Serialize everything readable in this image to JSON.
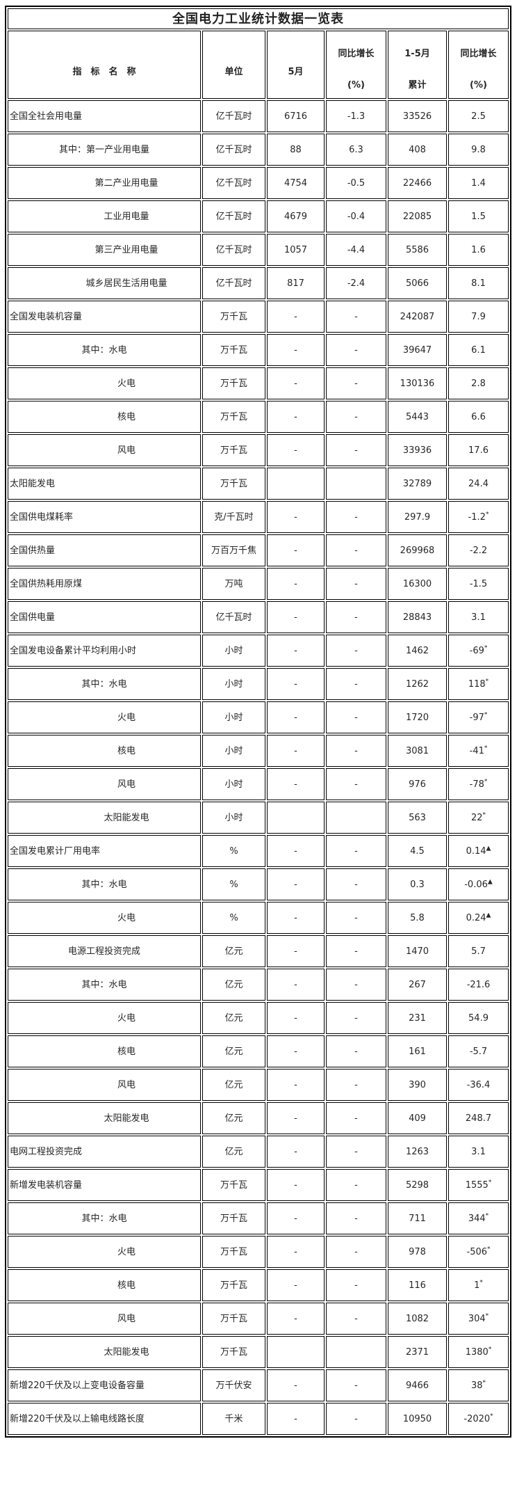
{
  "title": "全国电力工业统计数据一览表",
  "header": {
    "indicator": "指　标　名　称",
    "unit": "单位",
    "may": "5月",
    "yoy": "同比增长",
    "yoy_unit": "(%)",
    "cum": "1-5月",
    "cum_label": "累计"
  },
  "colors": {
    "border": "#000000",
    "text": "#262626",
    "background": "#ffffff"
  },
  "table_rows": [
    {
      "indicator": "全国全社会用电量",
      "align": "left",
      "unit": "亿千瓦时",
      "may": "6716",
      "yoy_may": "-1.3",
      "cum": "33526",
      "yoy_cum": "2.5",
      "marker": ""
    },
    {
      "indicator": "其中：第一产业用电量",
      "align": "center",
      "unit": "亿千瓦时",
      "may": "88",
      "yoy_may": "6.3",
      "cum": "408",
      "yoy_cum": "9.8",
      "marker": ""
    },
    {
      "indicator": "第二产业用电量",
      "align": "indent",
      "unit": "亿千瓦时",
      "may": "4754",
      "yoy_may": "-0.5",
      "cum": "22466",
      "yoy_cum": "1.4",
      "marker": ""
    },
    {
      "indicator": "工业用电量",
      "align": "indent",
      "unit": "亿千瓦时",
      "may": "4679",
      "yoy_may": "-0.4",
      "cum": "22085",
      "yoy_cum": "1.5",
      "marker": ""
    },
    {
      "indicator": "第三产业用电量",
      "align": "indent",
      "unit": "亿千瓦时",
      "may": "1057",
      "yoy_may": "-4.4",
      "cum": "5586",
      "yoy_cum": "1.6",
      "marker": ""
    },
    {
      "indicator": "城乡居民生活用电量",
      "align": "indent",
      "unit": "亿千瓦时",
      "may": "817",
      "yoy_may": "-2.4",
      "cum": "5066",
      "yoy_cum": "8.1",
      "marker": ""
    },
    {
      "indicator": "全国发电装机容量",
      "align": "left",
      "unit": "万千瓦",
      "may": "-",
      "yoy_may": "-",
      "cum": "242087",
      "yoy_cum": "7.9",
      "marker": ""
    },
    {
      "indicator": "其中：水电",
      "align": "center",
      "unit": "万千瓦",
      "may": "-",
      "yoy_may": "-",
      "cum": "39647",
      "yoy_cum": "6.1",
      "marker": ""
    },
    {
      "indicator": "火电",
      "align": "indent",
      "unit": "万千瓦",
      "may": "-",
      "yoy_may": "-",
      "cum": "130136",
      "yoy_cum": "2.8",
      "marker": ""
    },
    {
      "indicator": "核电",
      "align": "indent",
      "unit": "万千瓦",
      "may": "-",
      "yoy_may": "-",
      "cum": "5443",
      "yoy_cum": "6.6",
      "marker": ""
    },
    {
      "indicator": "风电",
      "align": "indent",
      "unit": "万千瓦",
      "may": "-",
      "yoy_may": "-",
      "cum": "33936",
      "yoy_cum": "17.6",
      "marker": ""
    },
    {
      "indicator": "太阳能发电",
      "align": "left",
      "unit": "万千瓦",
      "may": "",
      "yoy_may": "",
      "cum": "32789",
      "yoy_cum": "24.4",
      "marker": ""
    },
    {
      "indicator": "全国供电煤耗率",
      "align": "left",
      "unit": "克/千瓦时",
      "may": "-",
      "yoy_may": "-",
      "cum": "297.9",
      "yoy_cum": "-1.2",
      "marker": "*"
    },
    {
      "indicator": "全国供热量",
      "align": "left",
      "unit": "万百万千焦",
      "may": "-",
      "yoy_may": "-",
      "cum": "269968",
      "yoy_cum": "-2.2",
      "marker": ""
    },
    {
      "indicator": "全国供热耗用原煤",
      "align": "left",
      "unit": "万吨",
      "may": "-",
      "yoy_may": "-",
      "cum": "16300",
      "yoy_cum": "-1.5",
      "marker": ""
    },
    {
      "indicator": "全国供电量",
      "align": "left",
      "unit": "亿千瓦时",
      "may": "-",
      "yoy_may": "-",
      "cum": "28843",
      "yoy_cum": "3.1",
      "marker": ""
    },
    {
      "indicator": "全国发电设备累计平均利用小时",
      "align": "left",
      "unit": "小时",
      "may": "-",
      "yoy_may": "-",
      "cum": "1462",
      "yoy_cum": "-69",
      "marker": "*"
    },
    {
      "indicator": "其中：水电",
      "align": "center",
      "unit": "小时",
      "may": "-",
      "yoy_may": "-",
      "cum": "1262",
      "yoy_cum": "118",
      "marker": "*"
    },
    {
      "indicator": "火电",
      "align": "indent",
      "unit": "小时",
      "may": "-",
      "yoy_may": "-",
      "cum": "1720",
      "yoy_cum": "-97",
      "marker": "*"
    },
    {
      "indicator": "核电",
      "align": "indent",
      "unit": "小时",
      "may": "-",
      "yoy_may": "-",
      "cum": "3081",
      "yoy_cum": "-41",
      "marker": "*"
    },
    {
      "indicator": "风电",
      "align": "indent",
      "unit": "小时",
      "may": "-",
      "yoy_may": "-",
      "cum": "976",
      "yoy_cum": "-78",
      "marker": "*"
    },
    {
      "indicator": "太阳能发电",
      "align": "indent",
      "unit": "小时",
      "may": "",
      "yoy_may": "",
      "cum": "563",
      "yoy_cum": "22",
      "marker": "*"
    },
    {
      "indicator": "全国发电累计厂用电率",
      "align": "left",
      "unit": "%",
      "may": "-",
      "yoy_may": "-",
      "cum": "4.5",
      "yoy_cum": "0.14",
      "marker": "▲"
    },
    {
      "indicator": "其中：水电",
      "align": "center",
      "unit": "%",
      "may": "-",
      "yoy_may": "-",
      "cum": "0.3",
      "yoy_cum": "-0.06",
      "marker": "▲"
    },
    {
      "indicator": "火电",
      "align": "indent",
      "unit": "%",
      "may": "-",
      "yoy_may": "-",
      "cum": "5.8",
      "yoy_cum": "0.24",
      "marker": "▲"
    },
    {
      "indicator": "电源工程投资完成",
      "align": "center",
      "unit": "亿元",
      "may": "-",
      "yoy_may": "-",
      "cum": "1470",
      "yoy_cum": "5.7",
      "marker": ""
    },
    {
      "indicator": "其中：水电",
      "align": "center",
      "unit": "亿元",
      "may": "-",
      "yoy_may": "-",
      "cum": "267",
      "yoy_cum": "-21.6",
      "marker": ""
    },
    {
      "indicator": "火电",
      "align": "indent",
      "unit": "亿元",
      "may": "-",
      "yoy_may": "-",
      "cum": "231",
      "yoy_cum": "54.9",
      "marker": ""
    },
    {
      "indicator": "核电",
      "align": "indent",
      "unit": "亿元",
      "may": "-",
      "yoy_may": "-",
      "cum": "161",
      "yoy_cum": "-5.7",
      "marker": ""
    },
    {
      "indicator": "风电",
      "align": "indent",
      "unit": "亿元",
      "may": "-",
      "yoy_may": "-",
      "cum": "390",
      "yoy_cum": "-36.4",
      "marker": ""
    },
    {
      "indicator": "太阳能发电",
      "align": "indent",
      "unit": "亿元",
      "may": "-",
      "yoy_may": "-",
      "cum": "409",
      "yoy_cum": "248.7",
      "marker": ""
    },
    {
      "indicator": "电网工程投资完成",
      "align": "left",
      "unit": "亿元",
      "may": "-",
      "yoy_may": "-",
      "cum": "1263",
      "yoy_cum": "3.1",
      "marker": ""
    },
    {
      "indicator": "新增发电装机容量",
      "align": "left",
      "unit": "万千瓦",
      "may": "-",
      "yoy_may": "-",
      "cum": "5298",
      "yoy_cum": "1555",
      "marker": "*"
    },
    {
      "indicator": "其中：水电",
      "align": "center",
      "unit": "万千瓦",
      "may": "-",
      "yoy_may": "-",
      "cum": "711",
      "yoy_cum": "344",
      "marker": "*"
    },
    {
      "indicator": "火电",
      "align": "indent",
      "unit": "万千瓦",
      "may": "-",
      "yoy_may": "-",
      "cum": "978",
      "yoy_cum": "-506",
      "marker": "*"
    },
    {
      "indicator": "核电",
      "align": "indent",
      "unit": "万千瓦",
      "may": "-",
      "yoy_may": "-",
      "cum": "116",
      "yoy_cum": "1",
      "marker": "*"
    },
    {
      "indicator": "风电",
      "align": "indent",
      "unit": "万千瓦",
      "may": "-",
      "yoy_may": "-",
      "cum": "1082",
      "yoy_cum": "304",
      "marker": "*"
    },
    {
      "indicator": "太阳能发电",
      "align": "indent",
      "unit": "万千瓦",
      "may": "",
      "yoy_may": "",
      "cum": "2371",
      "yoy_cum": "1380",
      "marker": "*"
    },
    {
      "indicator": "新增220千伏及以上变电设备容量",
      "align": "left",
      "unit": "万千伏安",
      "may": "-",
      "yoy_may": "-",
      "cum": "9466",
      "yoy_cum": "38",
      "marker": "*"
    },
    {
      "indicator": "新增220千伏及以上输电线路长度",
      "align": "left",
      "unit": "千米",
      "may": "-",
      "yoy_may": "-",
      "cum": "10950",
      "yoy_cum": "-2020",
      "marker": "*"
    }
  ]
}
